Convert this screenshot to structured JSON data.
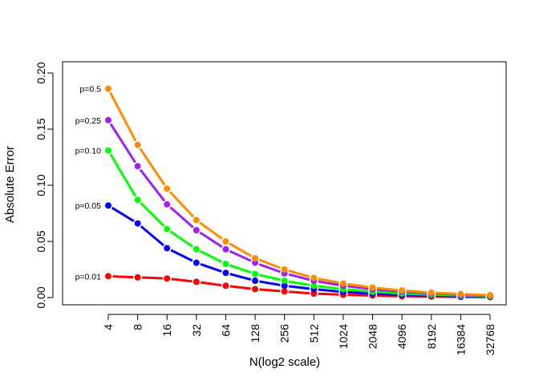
{
  "chart_data": {
    "type": "line",
    "title": "",
    "xlabel": "N(log2 scale)",
    "ylabel": "Absolute Error",
    "x_scale": "log2",
    "x": [
      4,
      8,
      16,
      32,
      64,
      128,
      256,
      512,
      1024,
      2048,
      4096,
      8192,
      16384,
      32768
    ],
    "x_tick_labels": [
      "4",
      "8",
      "16",
      "32",
      "64",
      "128",
      "256",
      "512",
      "1024",
      "2048",
      "4096",
      "8192",
      "16384",
      "32768"
    ],
    "y_ticks": [
      0.0,
      0.05,
      0.1,
      0.15,
      0.2
    ],
    "y_tick_labels": [
      "0.00",
      "0.05",
      "0.10",
      "0.15",
      "0.20"
    ],
    "ylim": [
      0.0,
      0.2
    ],
    "grid": false,
    "legend": "none",
    "series": [
      {
        "name": "p=0.01",
        "color": "#FF0000",
        "values": [
          0.019,
          0.018,
          0.017,
          0.014,
          0.0105,
          0.0075,
          0.0055,
          0.0035,
          0.0025,
          0.0018,
          0.0012,
          0.0009,
          0.0006,
          0.0004
        ]
      },
      {
        "name": "p=0.05",
        "color": "#0000FF",
        "values": [
          0.082,
          0.066,
          0.044,
          0.031,
          0.022,
          0.015,
          0.0105,
          0.0075,
          0.005,
          0.0035,
          0.0025,
          0.0018,
          0.0012,
          0.0009
        ]
      },
      {
        "name": "p=0.10",
        "color": "#00FF00",
        "values": [
          0.131,
          0.087,
          0.061,
          0.043,
          0.03,
          0.021,
          0.015,
          0.0105,
          0.0075,
          0.0052,
          0.0037,
          0.0026,
          0.0018,
          0.0013
        ]
      },
      {
        "name": "p=0.25",
        "color": "#A020F0",
        "values": [
          0.158,
          0.117,
          0.083,
          0.06,
          0.043,
          0.031,
          0.0215,
          0.015,
          0.0105,
          0.0075,
          0.0053,
          0.0037,
          0.0026,
          0.0019
        ]
      },
      {
        "name": "p=0.5",
        "color": "#FF8C00",
        "values": [
          0.186,
          0.136,
          0.097,
          0.069,
          0.05,
          0.035,
          0.025,
          0.0175,
          0.0125,
          0.0089,
          0.0063,
          0.0044,
          0.0031,
          0.0022
        ]
      }
    ]
  }
}
